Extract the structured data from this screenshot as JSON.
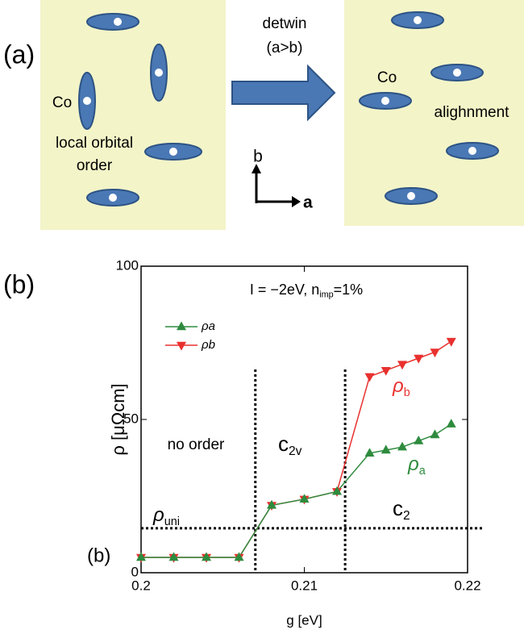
{
  "panel_a": {
    "label": "(a)",
    "arrow_top": "detwin",
    "arrow_bottom": "(a>b)",
    "left": {
      "atom": "Co",
      "caption_1": "local orbital",
      "caption_2": "order"
    },
    "right": {
      "atom": "Co",
      "caption": "alighnment"
    },
    "axis_b": "b",
    "axis_a": "a"
  },
  "chart_data": {
    "type": "line",
    "panel_label": "(b)",
    "inner_label": "(b)",
    "x_label": "g [eV]",
    "y_label": "ρ [μΩcm]",
    "xlim": [
      0.2,
      0.22
    ],
    "xticks": [
      0.2,
      0.21,
      0.22
    ],
    "ylim": [
      0,
      100
    ],
    "yticks": [
      0,
      50,
      100
    ],
    "x": [
      0.2,
      0.202,
      0.204,
      0.206,
      0.208,
      0.21,
      0.212,
      0.214,
      0.215,
      0.216,
      0.217,
      0.218,
      0.219
    ],
    "series": [
      {
        "name": "ρa",
        "color": "#2e8b3e",
        "marker": "triangle-up",
        "values": [
          5,
          5,
          5,
          5,
          22,
          24,
          26.5,
          39,
          40,
          41,
          43,
          45,
          48.5
        ]
      },
      {
        "name": "ρb",
        "color": "#e8312f",
        "marker": "triangle-down",
        "values": [
          5,
          5,
          5,
          5,
          22,
          24,
          26.5,
          64,
          66,
          68,
          70,
          72,
          75.5
        ]
      }
    ],
    "vlines": [
      0.207,
      0.2125
    ],
    "hlines": [
      14.5
    ],
    "annotations": [
      {
        "text": "I = −2eV,  n",
        "sub": "imp",
        "tail": "=1%"
      },
      {
        "text": "no order"
      },
      {
        "text": "c",
        "sub": "2v"
      },
      {
        "text": "c",
        "sub": "2"
      },
      {
        "text": "ρ",
        "sub": "uni"
      },
      {
        "text": "ρ",
        "sub": "b"
      },
      {
        "text": "ρ",
        "sub": "a"
      }
    ],
    "legend": "upper left"
  }
}
